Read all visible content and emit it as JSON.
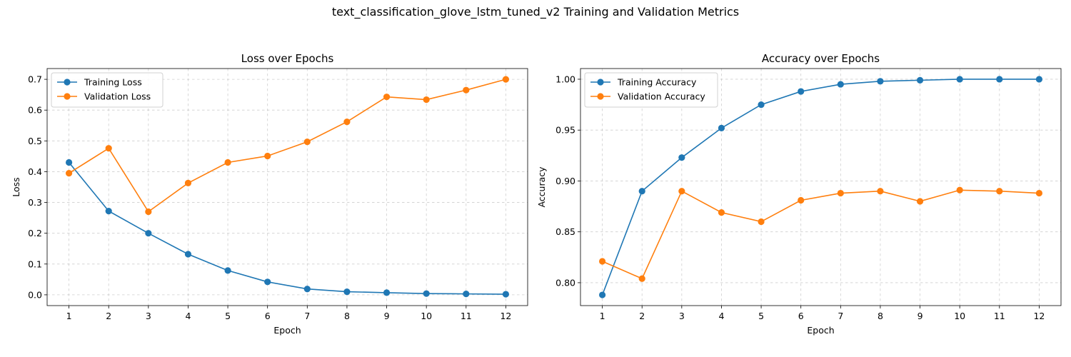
{
  "figure_title": "text_classification_glove_lstm_tuned_v2 Training and Validation Metrics",
  "chart_data": [
    {
      "type": "line",
      "title": "Loss over Epochs",
      "xlabel": "Epoch",
      "ylabel": "Loss",
      "x": [
        1,
        2,
        3,
        4,
        5,
        6,
        7,
        8,
        9,
        10,
        11,
        12
      ],
      "xlim": [
        0.45,
        12.55
      ],
      "ylim": [
        -0.035,
        0.735
      ],
      "xticks": [
        1,
        2,
        3,
        4,
        5,
        6,
        7,
        8,
        9,
        10,
        11,
        12
      ],
      "yticks": [
        0.0,
        0.1,
        0.2,
        0.3,
        0.4,
        0.5,
        0.6,
        0.7
      ],
      "ytick_labels": [
        "0.0",
        "0.1",
        "0.2",
        "0.3",
        "0.4",
        "0.5",
        "0.6",
        "0.7"
      ],
      "grid": true,
      "legend_position": "top-left",
      "series": [
        {
          "name": "Training Loss",
          "color": "#1f77b4",
          "values": [
            0.43,
            0.272,
            0.2,
            0.132,
            0.079,
            0.042,
            0.019,
            0.01,
            0.007,
            0.004,
            0.003,
            0.002
          ]
        },
        {
          "name": "Validation Loss",
          "color": "#ff7f0e",
          "values": [
            0.395,
            0.476,
            0.27,
            0.363,
            0.43,
            0.451,
            0.497,
            0.562,
            0.643,
            0.634,
            0.665,
            0.7
          ]
        }
      ]
    },
    {
      "type": "line",
      "title": "Accuracy over Epochs",
      "xlabel": "Epoch",
      "ylabel": "Accuracy",
      "x": [
        1,
        2,
        3,
        4,
        5,
        6,
        7,
        8,
        9,
        10,
        11,
        12
      ],
      "xlim": [
        0.45,
        12.55
      ],
      "ylim": [
        0.7775,
        1.0105
      ],
      "xticks": [
        1,
        2,
        3,
        4,
        5,
        6,
        7,
        8,
        9,
        10,
        11,
        12
      ],
      "yticks": [
        0.8,
        0.85,
        0.9,
        0.95,
        1.0
      ],
      "ytick_labels": [
        "0.80",
        "0.85",
        "0.90",
        "0.95",
        "1.00"
      ],
      "grid": true,
      "legend_position": "top-left",
      "series": [
        {
          "name": "Training Accuracy",
          "color": "#1f77b4",
          "values": [
            0.788,
            0.89,
            0.923,
            0.952,
            0.975,
            0.988,
            0.995,
            0.998,
            0.999,
            1.0,
            1.0,
            1.0
          ]
        },
        {
          "name": "Validation Accuracy",
          "color": "#ff7f0e",
          "values": [
            0.821,
            0.804,
            0.89,
            0.869,
            0.86,
            0.881,
            0.888,
            0.89,
            0.88,
            0.891,
            0.89,
            0.888
          ]
        }
      ]
    }
  ]
}
